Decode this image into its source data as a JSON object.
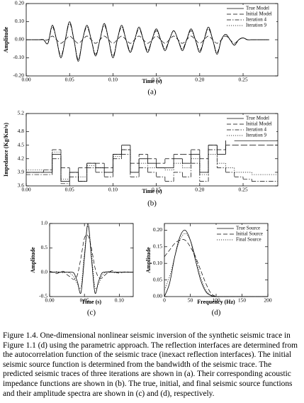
{
  "chart_data": [
    {
      "type": "line",
      "smooth": true,
      "label": "(a)",
      "xlabel": "Time (s)",
      "ylabel": "Amplitude",
      "xlim": [
        0,
        0.29
      ],
      "ylim": [
        -0.2,
        0.2
      ],
      "xticks": [
        {
          "value": 0,
          "label": "0.00"
        },
        {
          "value": 0.05,
          "label": "0.05"
        },
        {
          "value": 0.1,
          "label": "0.10"
        },
        {
          "value": 0.15,
          "label": "0.15"
        },
        {
          "value": 0.2,
          "label": "0.20"
        },
        {
          "value": 0.25,
          "label": "0.25"
        }
      ],
      "yticks": [
        {
          "value": -0.2,
          "label": "-0.20"
        },
        {
          "value": -0.1,
          "label": "-0.10"
        },
        {
          "value": 0,
          "label": "0.00"
        },
        {
          "value": 0.1,
          "label": "0.10"
        },
        {
          "value": 0.2,
          "label": "0.20"
        }
      ],
      "legend": "upper right",
      "x": [
        0,
        0.005,
        0.01,
        0.015,
        0.02,
        0.025,
        0.03,
        0.035,
        0.04,
        0.045,
        0.05,
        0.055,
        0.06,
        0.065,
        0.07,
        0.075,
        0.08,
        0.085,
        0.09,
        0.095,
        0.1,
        0.105,
        0.11,
        0.115,
        0.12,
        0.125,
        0.13,
        0.135,
        0.14,
        0.145,
        0.15,
        0.155,
        0.16,
        0.165,
        0.17,
        0.175,
        0.18,
        0.185,
        0.19,
        0.195,
        0.2,
        0.205,
        0.21,
        0.215,
        0.22,
        0.225,
        0.23,
        0.235,
        0.24,
        0.245,
        0.25,
        0.255,
        0.26,
        0.265,
        0.27,
        0.275,
        0.28
      ],
      "series": [
        {
          "name": "True Model",
          "color": "#000000",
          "dash": "solid",
          "values": [
            0,
            0,
            0,
            0,
            0,
            -0.02,
            0.08,
            0,
            -0.1,
            0,
            0.1,
            0,
            -0.12,
            0,
            0.08,
            0,
            -0.09,
            0,
            0.09,
            0,
            -0.1,
            0,
            0.08,
            0,
            -0.07,
            0,
            0.07,
            0,
            -0.07,
            0,
            0.06,
            0,
            -0.06,
            0,
            0.05,
            0,
            -0.06,
            0,
            0.06,
            0,
            -0.07,
            0,
            0.07,
            0,
            -0.08,
            0,
            0.03,
            0,
            -0.03,
            0,
            0.01,
            0,
            0,
            0,
            0,
            0,
            0
          ]
        },
        {
          "name": "Initial Model",
          "color": "#000000",
          "dash": "dashed",
          "values": [
            0,
            0,
            0,
            0,
            0,
            0,
            0.02,
            0,
            -0.02,
            0,
            0.02,
            0,
            -0.02,
            0,
            0.02,
            0,
            -0.02,
            0,
            0.02,
            0,
            -0.02,
            0,
            0.02,
            0,
            -0.02,
            0,
            0.02,
            0,
            -0.02,
            0,
            0.02,
            0,
            -0.02,
            0,
            0.02,
            0,
            -0.02,
            0,
            0.02,
            0,
            -0.02,
            0,
            0.02,
            0,
            -0.02,
            0,
            0.02,
            0,
            -0.02,
            0,
            0.01,
            0,
            0,
            0,
            0,
            0,
            0
          ]
        },
        {
          "name": "Iteration 4",
          "color": "#000000",
          "dash": "dashdot",
          "values": [
            0,
            0,
            0,
            0,
            0,
            -0.02,
            0.07,
            0,
            -0.09,
            0,
            0.09,
            0,
            -0.11,
            0,
            0.07,
            0,
            -0.08,
            0,
            0.08,
            0,
            -0.09,
            0,
            0.07,
            0,
            -0.06,
            0,
            0.06,
            0,
            -0.06,
            0,
            0.05,
            0,
            -0.05,
            0,
            0.05,
            0,
            -0.05,
            0,
            0.05,
            0,
            -0.06,
            0,
            0.06,
            0,
            -0.07,
            0,
            0.03,
            0,
            -0.03,
            0,
            0.01,
            0,
            0,
            0,
            0,
            0,
            0
          ]
        },
        {
          "name": "Iteration 9",
          "color": "#000000",
          "dash": "dotted",
          "values": [
            0,
            0,
            0,
            0,
            0,
            -0.02,
            0.08,
            0,
            -0.1,
            0,
            0.1,
            0,
            -0.11,
            0,
            0.08,
            0,
            -0.09,
            0,
            0.09,
            0,
            -0.1,
            0,
            0.08,
            0,
            -0.07,
            0,
            0.07,
            0,
            -0.07,
            0,
            0.06,
            0,
            -0.06,
            0,
            0.05,
            0,
            -0.06,
            0,
            0.06,
            0,
            -0.07,
            0,
            0.07,
            0,
            -0.08,
            0,
            0.03,
            0,
            -0.03,
            0,
            0.01,
            0,
            0,
            0,
            0,
            0,
            0
          ]
        }
      ]
    },
    {
      "type": "line",
      "step": true,
      "label": "(b)",
      "xlabel": "Time (s)",
      "ylabel": "Impedance (Kg/Km²s)",
      "xlim": [
        0,
        0.29
      ],
      "ylim": [
        3.6,
        5.2
      ],
      "xticks": [
        {
          "value": 0,
          "label": "0.00"
        },
        {
          "value": 0.05,
          "label": "0.05"
        },
        {
          "value": 0.1,
          "label": "0.10"
        },
        {
          "value": 0.15,
          "label": "0.15"
        },
        {
          "value": 0.2,
          "label": "0.20"
        },
        {
          "value": 0.25,
          "label": "0.25"
        }
      ],
      "yticks": [
        3.6,
        3.9,
        4.2,
        4.5,
        4.8,
        5.2
      ],
      "legend": "upper right",
      "x": [
        0,
        0.01,
        0.02,
        0.03,
        0.04,
        0.05,
        0.06,
        0.07,
        0.08,
        0.09,
        0.1,
        0.11,
        0.12,
        0.13,
        0.14,
        0.15,
        0.16,
        0.17,
        0.18,
        0.19,
        0.2,
        0.21,
        0.22,
        0.23,
        0.24,
        0.25,
        0.26,
        0.27,
        0.28
      ],
      "series": [
        {
          "name": "True Model",
          "color": "#000000",
          "dash": "solid",
          "values": [
            3.9,
            3.9,
            3.9,
            4.3,
            3.7,
            3.9,
            3.7,
            4.1,
            4,
            3.9,
            4.3,
            4.5,
            3.9,
            4.2,
            4.1,
            4,
            4,
            4.2,
            4.1,
            4.3,
            3.9,
            4.5,
            4.3,
            4.7,
            4.6,
            4.6,
            4.6,
            4.6,
            4.6
          ]
        },
        {
          "name": "Initial Model",
          "color": "#000000",
          "dash": "dashed",
          "values": [
            3.9,
            3.9,
            3.95,
            4.4,
            4,
            3.9,
            4,
            4.1,
            4.1,
            4,
            4.3,
            4.4,
            4.1,
            4.3,
            4.2,
            4.1,
            4.2,
            4.3,
            4.3,
            4.4,
            4.2,
            4.5,
            4.4,
            4.5,
            4.5,
            4.5,
            4.5,
            4.5,
            4.5
          ]
        },
        {
          "name": "Iteration 4",
          "color": "#000000",
          "dash": "dashdot",
          "values": [
            3.85,
            3.85,
            3.85,
            4.2,
            3.65,
            3.8,
            3.7,
            4,
            3.9,
            3.8,
            4.2,
            4.3,
            3.8,
            4,
            3.9,
            3.8,
            3.7,
            3.9,
            3.8,
            4.1,
            3.7,
            4.4,
            4,
            3.9,
            3.8,
            3.75,
            3.7,
            3.7,
            3.7
          ]
        },
        {
          "name": "Iteration 9",
          "color": "#000000",
          "dash": "dotted",
          "values": [
            3.95,
            3.95,
            3.95,
            4.35,
            3.75,
            3.9,
            3.8,
            4.05,
            4,
            3.9,
            4.25,
            4.4,
            3.9,
            4.1,
            4,
            4,
            3.95,
            4.1,
            4,
            4.2,
            3.85,
            4.3,
            4.1,
            4,
            3.9,
            3.9,
            3.85,
            3.85,
            3.85
          ]
        }
      ]
    },
    {
      "type": "line",
      "smooth": true,
      "label": "(c)",
      "xlabel": "Time (s)",
      "ylabel": "Amplitude",
      "xlim": [
        0,
        0.12
      ],
      "ylim": [
        -0.5,
        1
      ],
      "xticks": [
        {
          "value": 0,
          "label": "0.00"
        },
        {
          "value": 0.05,
          "label": "0.05"
        },
        {
          "value": 0.1,
          "label": "0.10"
        }
      ],
      "yticks": [
        -0.5,
        {
          "value": 0,
          "label": "0.0"
        },
        0.5,
        {
          "value": 1,
          "label": "1.0"
        }
      ],
      "x": [
        0,
        0.005,
        0.01,
        0.015,
        0.02,
        0.025,
        0.03,
        0.035,
        0.04,
        0.045,
        0.05,
        0.055,
        0.06,
        0.065,
        0.07,
        0.075,
        0.08,
        0.085,
        0.09,
        0.095,
        0.1,
        0.105,
        0.11,
        0.115,
        0.12
      ],
      "series": [
        {
          "name": "True Source",
          "color": "#000000",
          "dash": "solid",
          "values": [
            0,
            0,
            0,
            0,
            0,
            0,
            0,
            -0.02,
            -0.2,
            -0.42,
            0.3,
            1,
            0.3,
            -0.42,
            -0.2,
            -0.02,
            0,
            0,
            0,
            0,
            0,
            0,
            0,
            0,
            0
          ]
        },
        {
          "name": "Initial Source",
          "color": "#000000",
          "dash": "dashed",
          "values": [
            0.02,
            0,
            -0.03,
            0,
            0.02,
            -0.05,
            -0.1,
            -0.15,
            -0.05,
            0.3,
            0.7,
            0.75,
            0.5,
            0.1,
            -0.1,
            -0.12,
            -0.05,
            0,
            0.03,
            0,
            -0.02,
            0,
            0.01,
            0,
            0
          ]
        },
        {
          "name": "Final Source",
          "color": "#000000",
          "dash": "dotted",
          "values": [
            0,
            0,
            0.01,
            0,
            -0.01,
            0,
            -0.03,
            -0.1,
            -0.25,
            -0.3,
            0.4,
            0.95,
            0.4,
            -0.3,
            -0.25,
            -0.08,
            0,
            0.02,
            0,
            -0.01,
            0,
            0,
            0,
            0,
            0
          ]
        }
      ]
    },
    {
      "type": "line",
      "smooth": true,
      "label": "(d)",
      "xlabel": "Frequency (Hz)",
      "ylabel": "Amplitude",
      "xlim": [
        0,
        200
      ],
      "ylim": [
        0,
        0.22
      ],
      "xticks": [
        0,
        50,
        100,
        150,
        200
      ],
      "yticks": [
        {
          "value": 0,
          "label": "0.00"
        },
        {
          "value": 0.05,
          "label": "0.05"
        },
        {
          "value": 0.1,
          "label": "0.10"
        },
        {
          "value": 0.15,
          "label": "0.15"
        },
        {
          "value": 0.2,
          "label": "0.20"
        }
      ],
      "legend": "upper right",
      "x": [
        0,
        10,
        20,
        30,
        40,
        50,
        60,
        70,
        80,
        90,
        100,
        110,
        120,
        130,
        140,
        150,
        160,
        170,
        180,
        190,
        200
      ],
      "series": [
        {
          "name": "True Source",
          "color": "#000000",
          "dash": "solid",
          "values": [
            0,
            0.04,
            0.12,
            0.18,
            0.2,
            0.17,
            0.11,
            0.05,
            0.015,
            0.003,
            0,
            0,
            0,
            0,
            0,
            0,
            0,
            0,
            0,
            0,
            0
          ]
        },
        {
          "name": "Initial Source",
          "color": "#000000",
          "dash": "dashed",
          "values": [
            0.12,
            0.14,
            0.16,
            0.17,
            0.17,
            0.15,
            0.12,
            0.08,
            0.04,
            0.01,
            0,
            0,
            0,
            0,
            0,
            0,
            0,
            0,
            0,
            0,
            0
          ]
        },
        {
          "name": "Final Source",
          "color": "#000000",
          "dash": "dotted",
          "values": [
            0.02,
            0.06,
            0.12,
            0.17,
            0.19,
            0.17,
            0.12,
            0.06,
            0.02,
            0.005,
            0,
            0,
            0,
            0,
            0,
            0,
            0,
            0,
            0,
            0,
            0
          ]
        }
      ]
    }
  ],
  "caption": "Figure 1.4. One-dimensional nonlinear seismic inversion of the synthetic seismic trace in Figure 1.1 (d) using the parametric approach.  The reflection interfaces are determined from the autocorrelation function of the seismic trace (inexact reflection interfaces). The initial seismic source function is determined from the bandwidth of the seismic trace.  The predicted seismic traces of three iterations are shown in (a).  Their corresponding acoustic impedance functions are shown in (b).  The true, initial, and final seismic source functions and their amplitude spectra are shown in (c) and (d), respectively."
}
